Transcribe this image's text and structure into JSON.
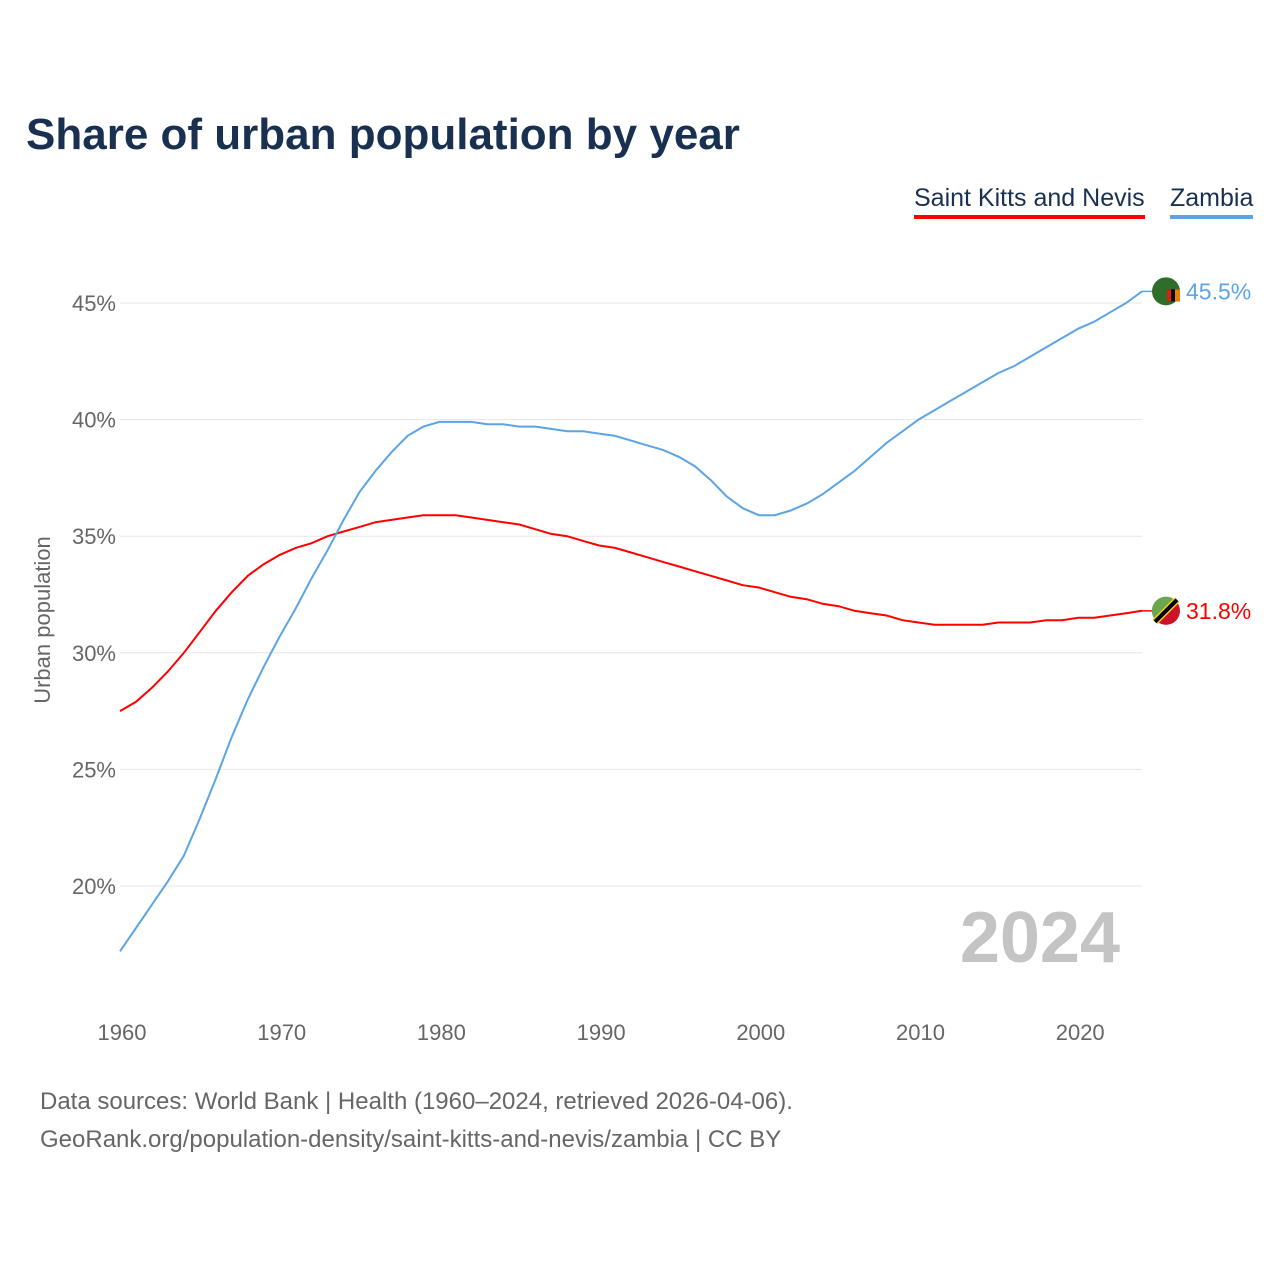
{
  "title": "Share of urban population by year",
  "footer": {
    "line1": "Data sources: World Bank | Health (1960–2024, retrieved 2026-04-06).",
    "line2": "GeoRank.org/population-density/saint-kitts-and-nevis/zambia | CC BY"
  },
  "year_watermark": "2024",
  "chart_data": {
    "type": "line",
    "title": "Share of urban population by year",
    "xlabel": "",
    "ylabel": "Urban population",
    "xlim": [
      1960,
      2024
    ],
    "ylim": [
      16,
      47
    ],
    "yticks": [
      20,
      25,
      30,
      35,
      40,
      45
    ],
    "ytick_labels": [
      "20%",
      "25%",
      "30%",
      "35%",
      "40%",
      "45%"
    ],
    "xticks": [
      1960,
      1970,
      1980,
      1990,
      2000,
      2010,
      2020
    ],
    "xtick_labels": [
      "1960",
      "1970",
      "1980",
      "1990",
      "2000",
      "2010",
      "2020"
    ],
    "grid": true,
    "legend_placement": "top-right",
    "x_start": 1960,
    "series": [
      {
        "name": "Saint Kitts and Nevis",
        "color": "#ff0000",
        "end_label": "31.8%",
        "values": [
          27.5,
          27.9,
          28.5,
          29.2,
          30.0,
          30.9,
          31.8,
          32.6,
          33.3,
          33.8,
          34.2,
          34.5,
          34.7,
          35.0,
          35.2,
          35.4,
          35.6,
          35.7,
          35.8,
          35.9,
          35.9,
          35.9,
          35.8,
          35.7,
          35.6,
          35.5,
          35.3,
          35.1,
          35.0,
          34.8,
          34.6,
          34.5,
          34.3,
          34.1,
          33.9,
          33.7,
          33.5,
          33.3,
          33.1,
          32.9,
          32.8,
          32.6,
          32.4,
          32.3,
          32.1,
          32.0,
          31.8,
          31.7,
          31.6,
          31.4,
          31.3,
          31.2,
          31.2,
          31.2,
          31.2,
          31.3,
          31.3,
          31.3,
          31.4,
          31.4,
          31.5,
          31.5,
          31.6,
          31.7,
          31.8
        ]
      },
      {
        "name": "Zambia",
        "color": "#5ba4e6",
        "end_label": "45.5%",
        "values": [
          17.2,
          18.2,
          19.2,
          20.2,
          21.3,
          22.9,
          24.6,
          26.4,
          28.0,
          29.4,
          30.7,
          31.9,
          33.2,
          34.4,
          35.7,
          36.9,
          37.8,
          38.6,
          39.3,
          39.7,
          39.9,
          39.9,
          39.9,
          39.8,
          39.8,
          39.7,
          39.7,
          39.6,
          39.5,
          39.5,
          39.4,
          39.3,
          39.1,
          38.9,
          38.7,
          38.4,
          38.0,
          37.4,
          36.7,
          36.2,
          35.9,
          35.9,
          36.1,
          36.4,
          36.8,
          37.3,
          37.8,
          38.4,
          39.0,
          39.5,
          40.0,
          40.4,
          40.8,
          41.2,
          41.6,
          42.0,
          42.3,
          42.7,
          43.1,
          43.5,
          43.9,
          44.2,
          44.6,
          45.0,
          45.5
        ]
      }
    ]
  }
}
